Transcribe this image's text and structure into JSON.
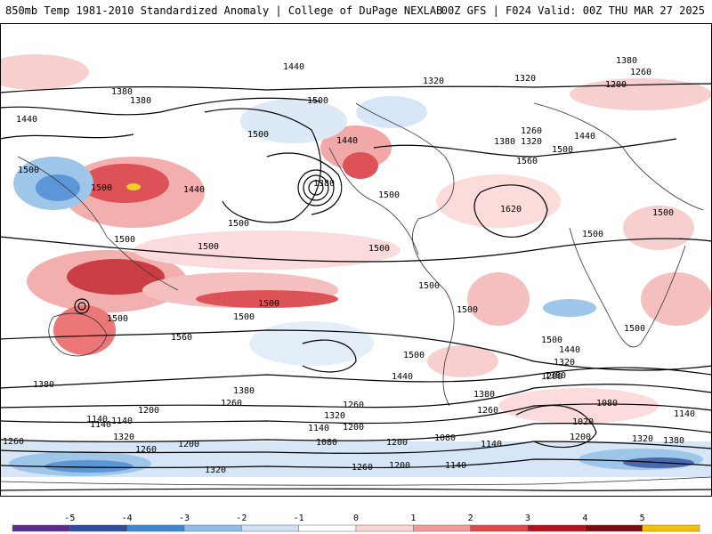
{
  "header": {
    "title_left": "850mb Temp 1981-2010 Standardized Anomaly | College of DuPage NEXLAB",
    "title_right": "00Z GFS | F024 Valid: 00Z THU MAR 27 2025"
  },
  "contour_labels": [
    {
      "text": "1440"
    },
    {
      "text": "1380"
    },
    {
      "text": "1380"
    },
    {
      "text": "1440"
    },
    {
      "text": "1500"
    },
    {
      "text": "1500"
    },
    {
      "text": "1500"
    },
    {
      "text": "1440"
    },
    {
      "text": "1440"
    },
    {
      "text": "1380"
    },
    {
      "text": "1500"
    },
    {
      "text": "1320"
    },
    {
      "text": "1380"
    },
    {
      "text": "1260"
    },
    {
      "text": "1320"
    },
    {
      "text": "1200"
    },
    {
      "text": "1260"
    },
    {
      "text": "1380"
    },
    {
      "text": "1320"
    },
    {
      "text": "1440"
    },
    {
      "text": "1500"
    },
    {
      "text": "1560"
    },
    {
      "text": "1620"
    },
    {
      "text": "1500"
    },
    {
      "text": "1500"
    },
    {
      "text": "1500"
    },
    {
      "text": "1500"
    },
    {
      "text": "1500"
    },
    {
      "text": "1500"
    },
    {
      "text": "1500"
    },
    {
      "text": "1500"
    },
    {
      "text": "1500"
    },
    {
      "text": "1500"
    },
    {
      "text": "1500"
    },
    {
      "text": "1500"
    },
    {
      "text": "1500"
    },
    {
      "text": "1560"
    },
    {
      "text": "1500"
    },
    {
      "text": "1440"
    },
    {
      "text": "1320"
    },
    {
      "text": "1380"
    },
    {
      "text": "1440"
    },
    {
      "text": "1380"
    },
    {
      "text": "1260"
    },
    {
      "text": "1500"
    },
    {
      "text": "1200"
    },
    {
      "text": "1380"
    },
    {
      "text": "1260"
    },
    {
      "text": "1140"
    },
    {
      "text": "1140"
    },
    {
      "text": "1200"
    },
    {
      "text": "1320"
    },
    {
      "text": "1260"
    },
    {
      "text": "1380"
    },
    {
      "text": "1200"
    },
    {
      "text": "1200"
    },
    {
      "text": "1140"
    },
    {
      "text": "1080"
    },
    {
      "text": "1200"
    },
    {
      "text": "1140"
    },
    {
      "text": "1080"
    },
    {
      "text": "1020"
    },
    {
      "text": "1080"
    },
    {
      "text": "1140"
    },
    {
      "text": "1200"
    },
    {
      "text": "1320"
    },
    {
      "text": "1380"
    },
    {
      "text": "1260"
    },
    {
      "text": "1140"
    },
    {
      "text": "1320"
    },
    {
      "text": "1260"
    },
    {
      "text": "1200"
    },
    {
      "text": "1140"
    },
    {
      "text": "1320"
    },
    {
      "text": "1260"
    }
  ],
  "colorbar": {
    "ticks": [
      "-5",
      "-4",
      "-3",
      "-2",
      "-1",
      "0",
      "1",
      "2",
      "3",
      "4",
      "5"
    ],
    "colors": [
      "#5b2c8f",
      "#2b4f9e",
      "#3f86d0",
      "#8ebde6",
      "#cfe2f5",
      "#ffffff",
      "#fbd5d5",
      "#f29a9a",
      "#e04848",
      "#b3121b",
      "#7a0d12",
      "#f2c200"
    ]
  }
}
